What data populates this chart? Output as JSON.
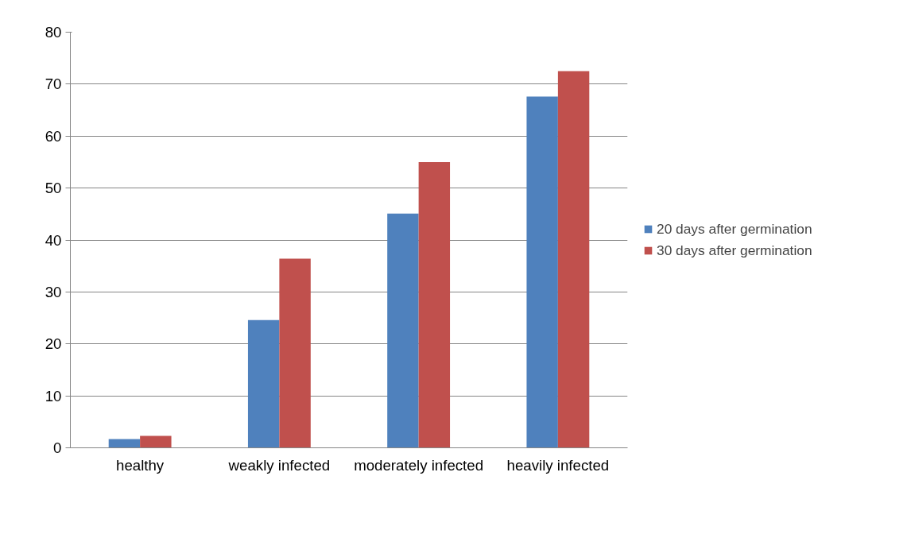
{
  "chart_data": {
    "type": "bar",
    "categories": [
      "healthy",
      "weakly infected",
      "moderately infected",
      "heavily infected"
    ],
    "series": [
      {
        "name": "20 days after germination",
        "color": "#4f81bd",
        "values": [
          1.7,
          24.6,
          45.1,
          67.6
        ]
      },
      {
        "name": "30 days after germination",
        "color": "#c0504d",
        "values": [
          2.3,
          36.4,
          55,
          72.5
        ]
      }
    ],
    "ylim": [
      0,
      80
    ],
    "yticks": [
      0,
      10,
      20,
      30,
      40,
      50,
      60,
      70,
      80
    ],
    "grid": "y",
    "legend": "right"
  }
}
